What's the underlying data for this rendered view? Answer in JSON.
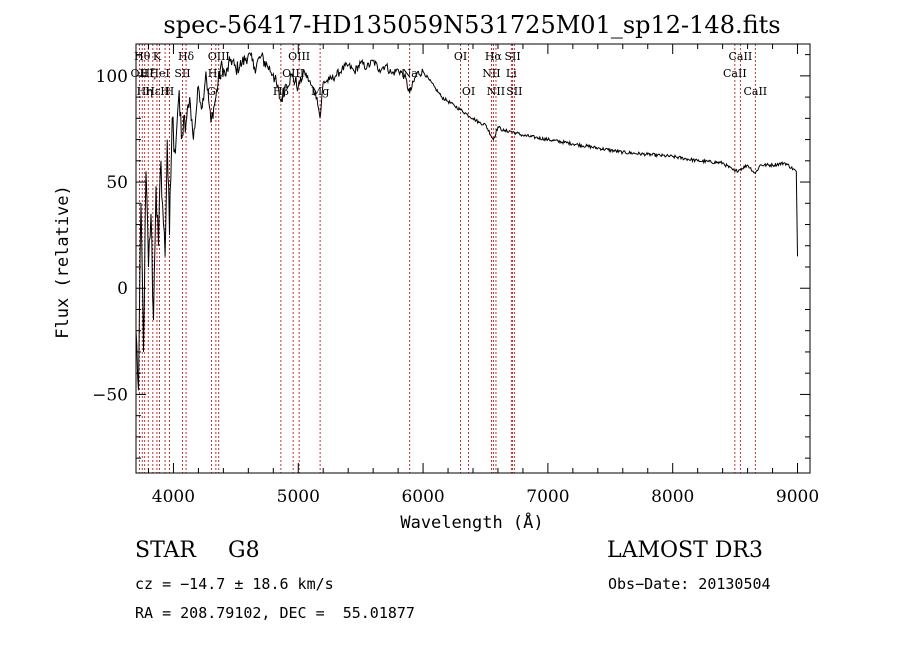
{
  "chart_data": {
    "type": "line",
    "title": "spec-56417-HD135059N531725M01_sp12-148.fits",
    "xlabel": "Wavelength (Å)",
    "ylabel": "Flux (relative)",
    "xlim": [
      3700,
      9100
    ],
    "ylim": [
      -87,
      115
    ],
    "x_ticks": [
      4000,
      5000,
      6000,
      7000,
      8000,
      9000
    ],
    "x_tick_labels": [
      "4000",
      "5000",
      "6000",
      "7000",
      "8000",
      "9000"
    ],
    "y_ticks": [
      -50,
      0,
      50,
      100
    ],
    "y_tick_labels": [
      "−50",
      "0",
      "50",
      "100"
    ],
    "grid": false,
    "series": [
      {
        "name": "flux",
        "x": [
          3700,
          3720,
          3740,
          3760,
          3780,
          3800,
          3820,
          3840,
          3860,
          3880,
          3900,
          3920,
          3933,
          3950,
          3968,
          3990,
          4010,
          4040,
          4070,
          4101,
          4130,
          4160,
          4200,
          4230,
          4260,
          4300,
          4340,
          4380,
          4420,
          4460,
          4500,
          4550,
          4600,
          4650,
          4700,
          4750,
          4800,
          4861,
          4900,
          4950,
          5000,
          5050,
          5100,
          5150,
          5175,
          5200,
          5250,
          5300,
          5350,
          5400,
          5450,
          5500,
          5550,
          5600,
          5650,
          5700,
          5750,
          5800,
          5850,
          5893,
          5950,
          6000,
          6050,
          6100,
          6150,
          6200,
          6250,
          6300,
          6350,
          6400,
          6450,
          6500,
          6563,
          6600,
          6650,
          6700,
          6750,
          6800,
          6900,
          7000,
          7200,
          7400,
          7600,
          7800,
          8000,
          8200,
          8400,
          8498,
          8542,
          8600,
          8662,
          8700,
          8800,
          8900,
          8990,
          9000
        ],
        "y": [
          -20,
          -48,
          40,
          -30,
          55,
          10,
          35,
          -15,
          48,
          20,
          60,
          30,
          15,
          70,
          25,
          80,
          65,
          88,
          72,
          78,
          90,
          70,
          95,
          85,
          102,
          78,
          90,
          105,
          100,
          108,
          103,
          106,
          110,
          104,
          109,
          105,
          101,
          88,
          96,
          100,
          95,
          102,
          96,
          90,
          80,
          97,
          98,
          100,
          103,
          105,
          102,
          106,
          104,
          107,
          103,
          105,
          101,
          103,
          100,
          92,
          101,
          102,
          98,
          94,
          90,
          88,
          86,
          84,
          82,
          80,
          78,
          77,
          70,
          76,
          74,
          74,
          73,
          72,
          71,
          70,
          68,
          66,
          64,
          63,
          62,
          60,
          59,
          55,
          56,
          58,
          54,
          58,
          58,
          59,
          55,
          15
        ]
      }
    ],
    "line_color": "#000000",
    "line_markers": [
      {
        "x": 3727,
        "label": "OII",
        "row": 1
      },
      {
        "x": 3750,
        "label": "Hθ",
        "row": 0
      },
      {
        "x": 3770,
        "label": "Hη",
        "row": 2
      },
      {
        "x": 3798,
        "label": "Hζ",
        "row": 1
      },
      {
        "x": 3835,
        "label": "Hε",
        "row": 2
      },
      {
        "x": 3868,
        "label": "K",
        "row": 0
      },
      {
        "x": 3889,
        "label": "HeI",
        "row": 1
      },
      {
        "x": 3933,
        "label": "H",
        "row": 2
      },
      {
        "x": 3968,
        "label": "H",
        "row": 2
      },
      {
        "x": 4072,
        "label": "SII",
        "row": 1
      },
      {
        "x": 4101,
        "label": "Hδ",
        "row": 0
      },
      {
        "x": 4304,
        "label": "G",
        "row": 2
      },
      {
        "x": 4340,
        "label": "Hγ",
        "row": 1
      },
      {
        "x": 4363,
        "label": "OIII",
        "row": 0
      },
      {
        "x": 4861,
        "label": "Hβ",
        "row": 2
      },
      {
        "x": 4959,
        "label": "OIII",
        "row": 1
      },
      {
        "x": 5007,
        "label": "OIII",
        "row": 0
      },
      {
        "x": 5175,
        "label": "Mg",
        "row": 2
      },
      {
        "x": 5893,
        "label": "Na",
        "row": 1
      },
      {
        "x": 6300,
        "label": "OI",
        "row": 0
      },
      {
        "x": 6364,
        "label": "OI",
        "row": 2
      },
      {
        "x": 6548,
        "label": "NII",
        "row": 1
      },
      {
        "x": 6563,
        "label": "Hα",
        "row": 0
      },
      {
        "x": 6584,
        "label": "NII",
        "row": 2
      },
      {
        "x": 6707,
        "label": "Li",
        "row": 1
      },
      {
        "x": 6717,
        "label": "SII",
        "row": 0
      },
      {
        "x": 6731,
        "label": "SII",
        "row": 2
      },
      {
        "x": 8498,
        "label": "CaII",
        "row": 1
      },
      {
        "x": 8542,
        "label": "CaII",
        "row": 0
      },
      {
        "x": 8662,
        "label": "CaII",
        "row": 2
      }
    ],
    "marker_color": "#b00000"
  },
  "info": {
    "object_class": "STAR",
    "subclass": "G8",
    "survey": "LAMOST DR3",
    "redshift_line": "cz = −14.7 ± 18.6 km/s",
    "obs_date_line": "Obs−Date: 20130504",
    "coords_line": "RA = 208.79102, DEC =  55.01877"
  }
}
